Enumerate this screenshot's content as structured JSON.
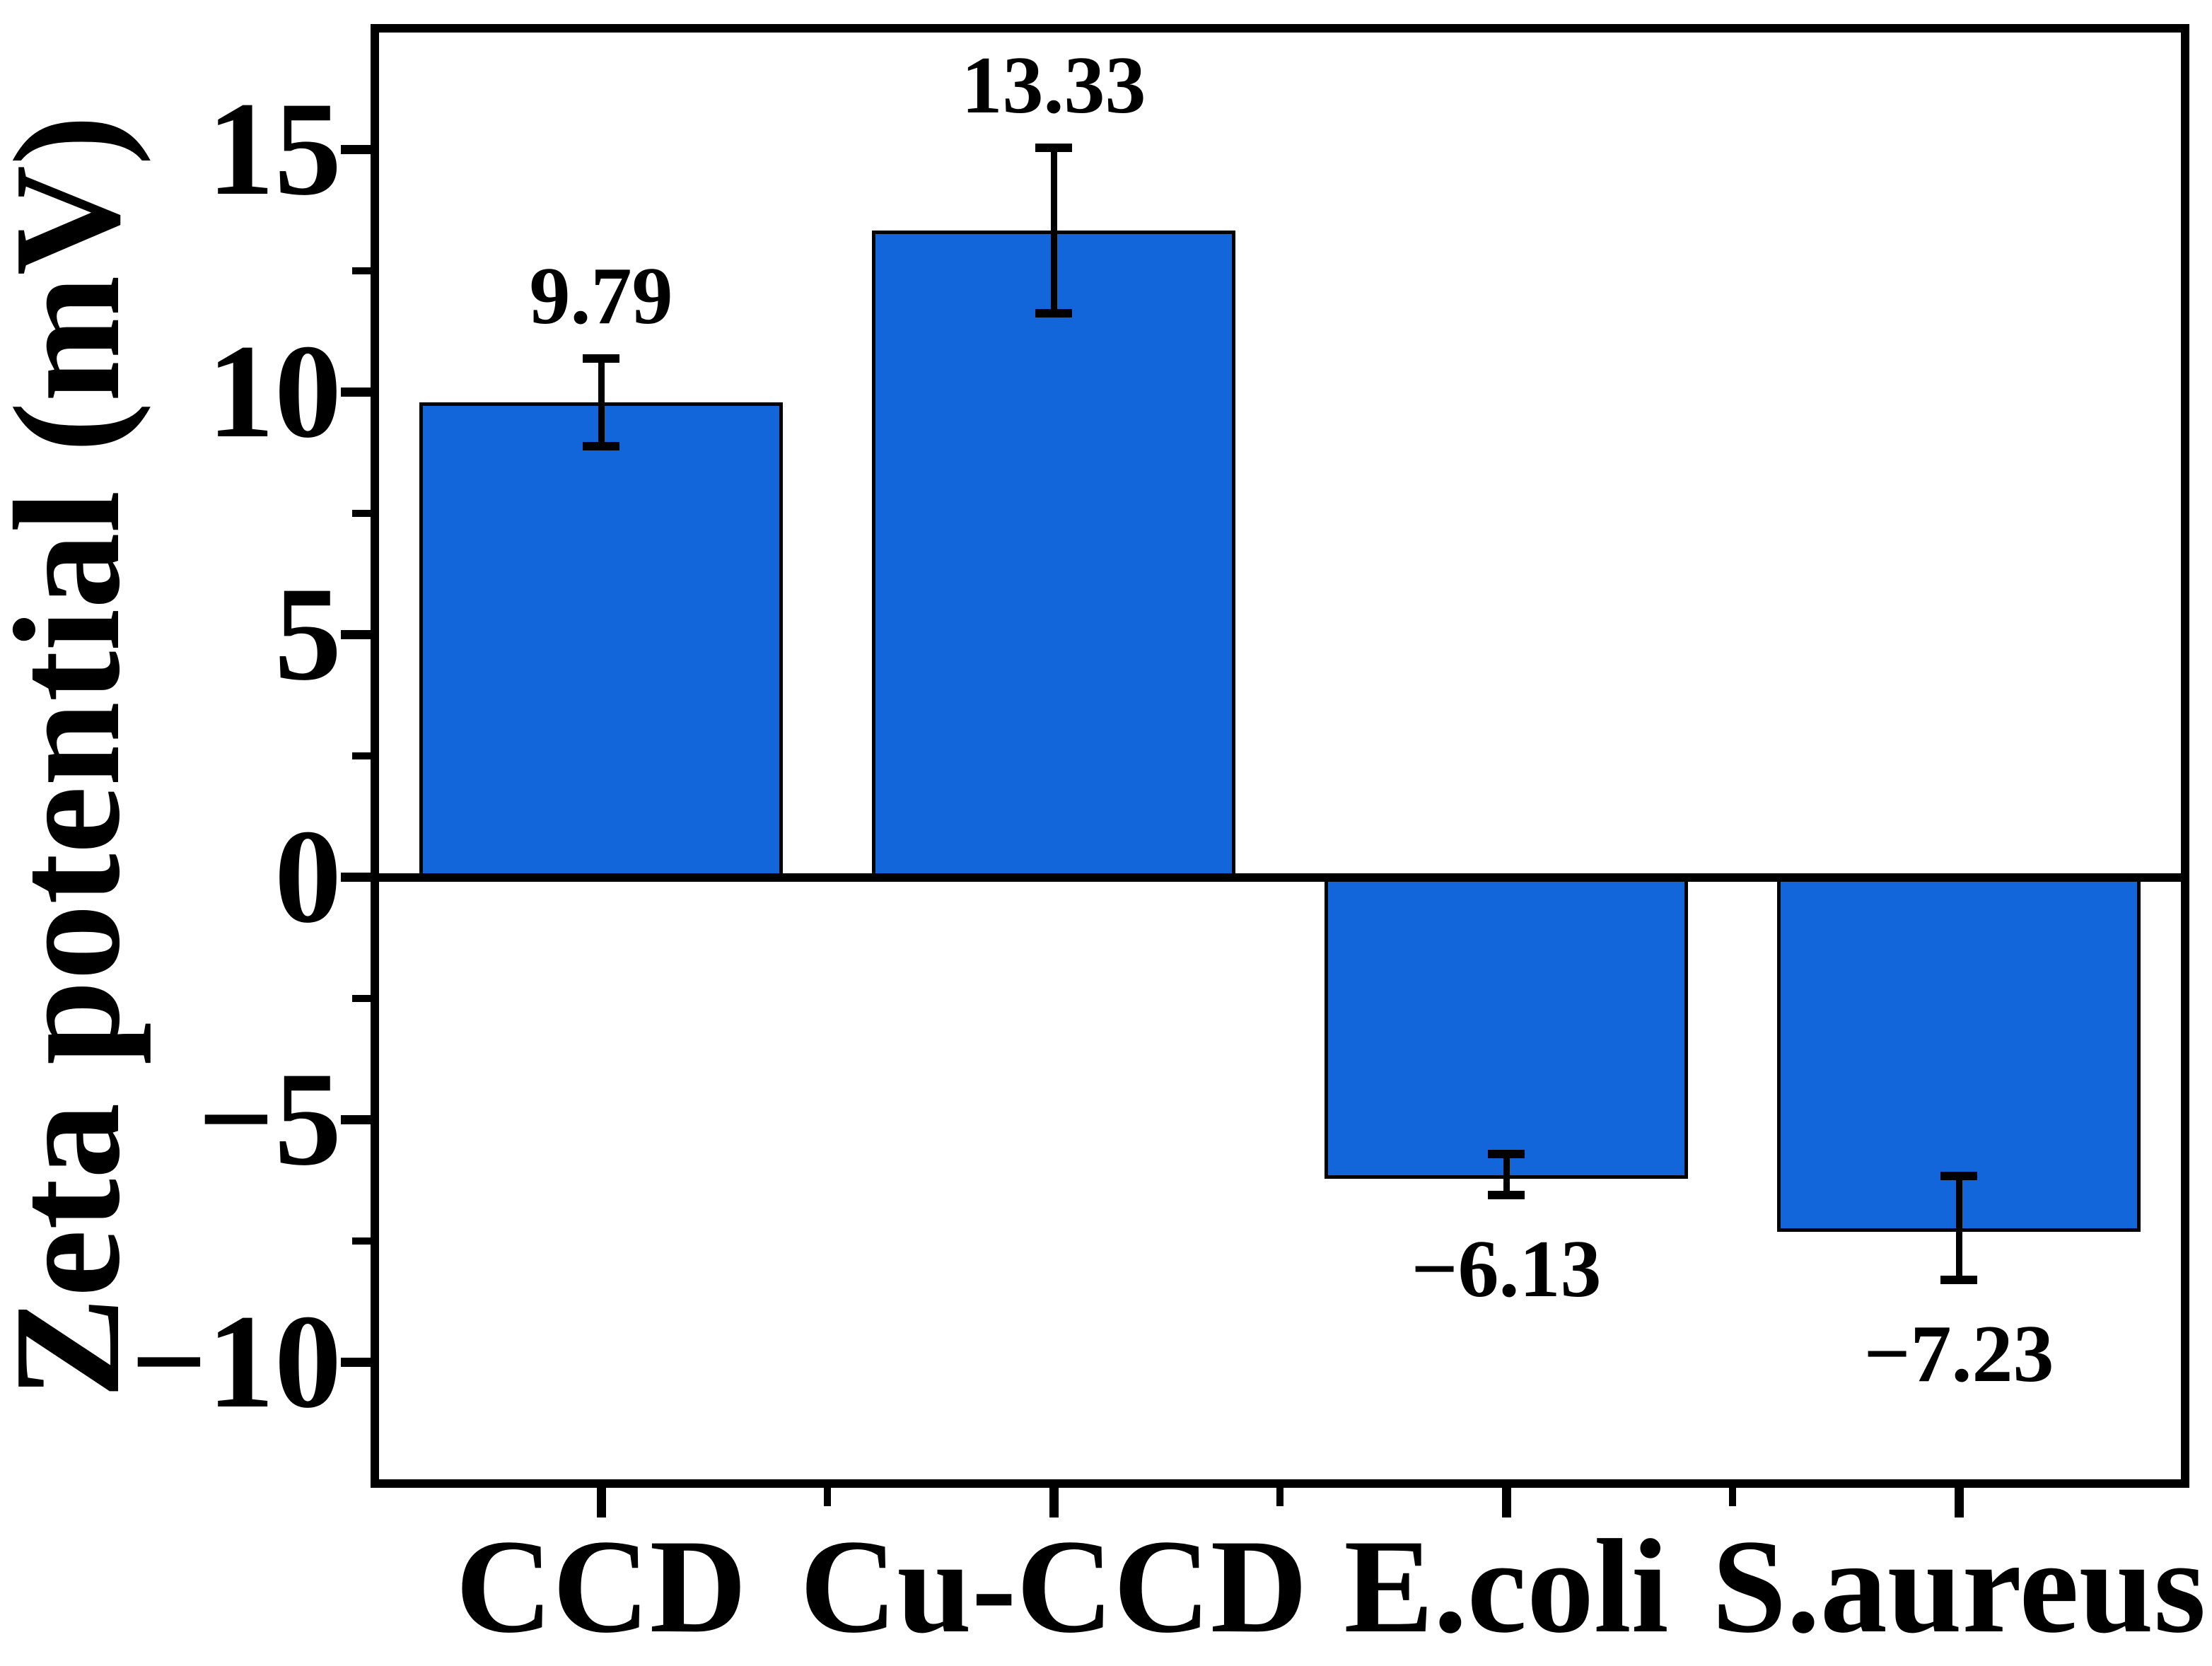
{
  "chart_data": {
    "type": "bar",
    "title": "",
    "xlabel": "",
    "ylabel": "Zeta potential (mV)",
    "categories": [
      "CCD",
      "Cu-CCD",
      "E.coli",
      "S.aureus"
    ],
    "values": [
      9.79,
      13.33,
      -6.13,
      -7.23
    ],
    "errors": [
      0.9,
      1.7,
      0.42,
      1.07
    ],
    "value_labels": [
      "9.79",
      "13.33",
      "−6.13",
      "−7.23"
    ],
    "ylim": [
      -12.5,
      17.5
    ],
    "yticks_major": [
      15,
      10,
      5,
      0,
      -5,
      -10
    ],
    "ytick_labels": [
      "15",
      "10",
      "5",
      "0",
      "−5",
      "−10"
    ],
    "yticks_minor": [
      12.5,
      7.5,
      2.5,
      -2.5,
      -7.5
    ],
    "bar_color": "#1366d9",
    "bar_edge_color": "#000000",
    "axis_color": "#000000",
    "text_color": "#000000",
    "grid": false,
    "legend": null
  }
}
